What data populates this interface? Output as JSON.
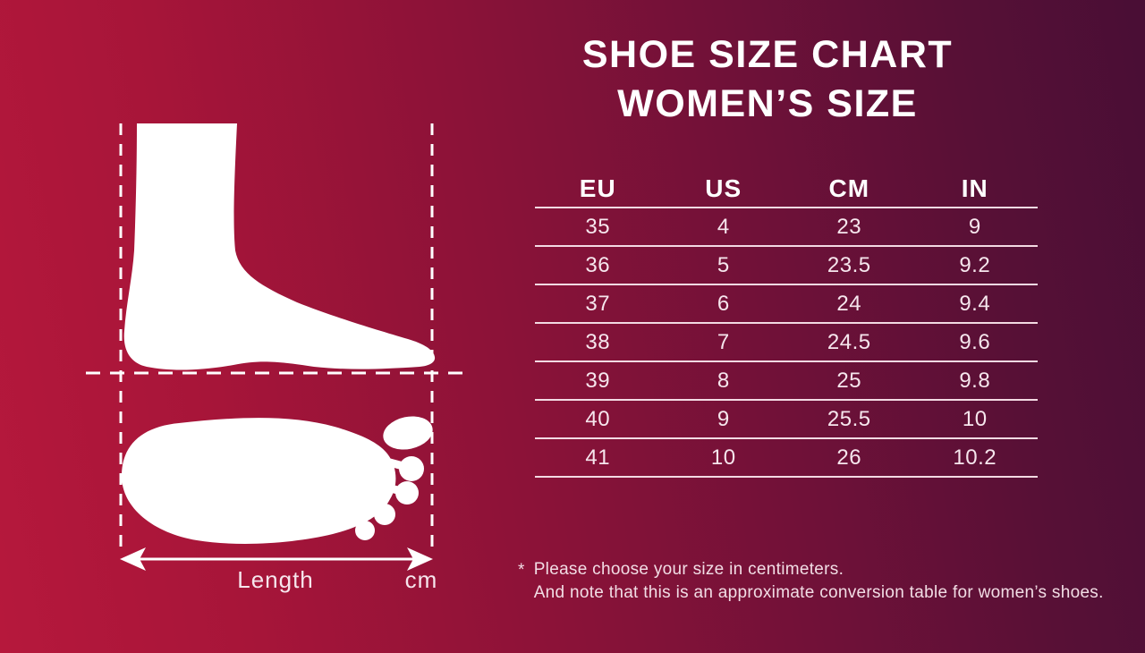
{
  "title": {
    "line1": "SHOE SIZE CHART",
    "line2": "WOMEN’S SIZE"
  },
  "table": {
    "headers": [
      "EU",
      "US",
      "CM",
      "IN"
    ],
    "rows": [
      [
        "35",
        "4",
        "23",
        "9"
      ],
      [
        "36",
        "5",
        "23.5",
        "9.2"
      ],
      [
        "37",
        "6",
        "24",
        "9.4"
      ],
      [
        "38",
        "7",
        "24.5",
        "9.6"
      ],
      [
        "39",
        "8",
        "25",
        "9.8"
      ],
      [
        "40",
        "9",
        "25.5",
        "10"
      ],
      [
        "41",
        "10",
        "26",
        "10.2"
      ]
    ]
  },
  "footnote": {
    "marker": "*",
    "line1": "Please choose your size in centimeters.",
    "line2": "And note that this is an approximate conversion table for women’s shoes."
  },
  "diagram": {
    "length_label": "Length",
    "unit_label": "cm"
  },
  "colors": {
    "bg_gradient_start": "#b6183c",
    "bg_gradient_end": "#490e35",
    "foot_fill": "#ffffff",
    "table_line": "#f3dae3",
    "title_text": "#ffffff",
    "body_text": "#f6e6ed"
  },
  "chart_data": {
    "type": "table",
    "title": "SHOE SIZE CHART WOMEN’S SIZE",
    "columns": [
      "EU",
      "US",
      "CM",
      "IN"
    ],
    "rows": [
      [
        35,
        4,
        23,
        9
      ],
      [
        36,
        5,
        23.5,
        9.2
      ],
      [
        37,
        6,
        24,
        9.4
      ],
      [
        38,
        7,
        24.5,
        9.6
      ],
      [
        39,
        8,
        25,
        9.8
      ],
      [
        40,
        9,
        25.5,
        10
      ],
      [
        41,
        10,
        26,
        10.2
      ]
    ],
    "notes": [
      "Please choose your size in centimeters.",
      "And note that this is an approximate conversion table for women’s shoes."
    ]
  }
}
